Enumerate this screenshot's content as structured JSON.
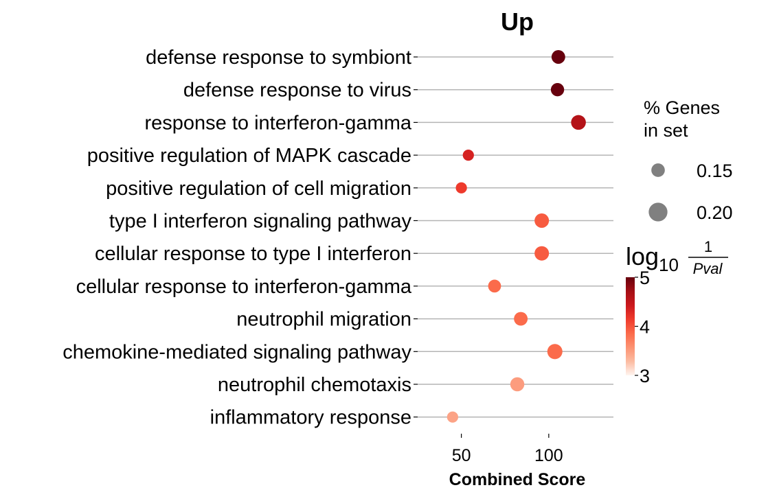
{
  "chart_data": {
    "type": "scatter",
    "title": "Up",
    "xlabel": "Combined Score",
    "ylabel": "",
    "xlim": [
      25,
      137
    ],
    "xticks": [
      50,
      100
    ],
    "grid": false,
    "terms": [
      "defense response to symbiont",
      "defense response to virus",
      "response to interferon-gamma",
      "positive regulation of MAPK cascade",
      "positive regulation of cell migration",
      "type I interferon signaling pathway",
      "cellular response to type I interferon",
      "cellular response to interferon-gamma",
      "neutrophil migration",
      "chemokine-mediated signaling pathway",
      "neutrophil chemotaxis",
      "inflammatory response"
    ],
    "combined_score": [
      105.5,
      105,
      117,
      54,
      50,
      96,
      96,
      69,
      84,
      103.5,
      82,
      45
    ],
    "percent_genes_in_set": [
      0.18,
      0.17,
      0.21,
      0.12,
      0.12,
      0.2,
      0.2,
      0.16,
      0.18,
      0.22,
      0.19,
      0.12
    ],
    "log10_inv_pval": [
      5.0,
      5.0,
      4.6,
      4.35,
      4.15,
      3.95,
      3.95,
      3.85,
      3.85,
      3.85,
      3.5,
      3.45
    ],
    "size_legend": {
      "title_line1": "% Genes",
      "title_line2": "in set",
      "entries": [
        {
          "value": 0.15,
          "label": "0.15"
        },
        {
          "value": 0.2,
          "label": "0.20"
        }
      ]
    },
    "colorbar": {
      "title_base": "log",
      "title_sub": "10",
      "title_num": "1",
      "title_den": "Pval",
      "range": [
        3,
        5
      ],
      "ticks": [
        {
          "value": 5,
          "label": "5"
        },
        {
          "value": 4,
          "label": "4"
        },
        {
          "value": 3,
          "label": "3"
        }
      ],
      "colormap": "Reds",
      "colors": [
        "#fff5f0",
        "#fcbba1",
        "#fc9272",
        "#fb6a4a",
        "#ef3b2c",
        "#cb181d",
        "#a50f15",
        "#67000d"
      ]
    },
    "legend_position": "right"
  }
}
